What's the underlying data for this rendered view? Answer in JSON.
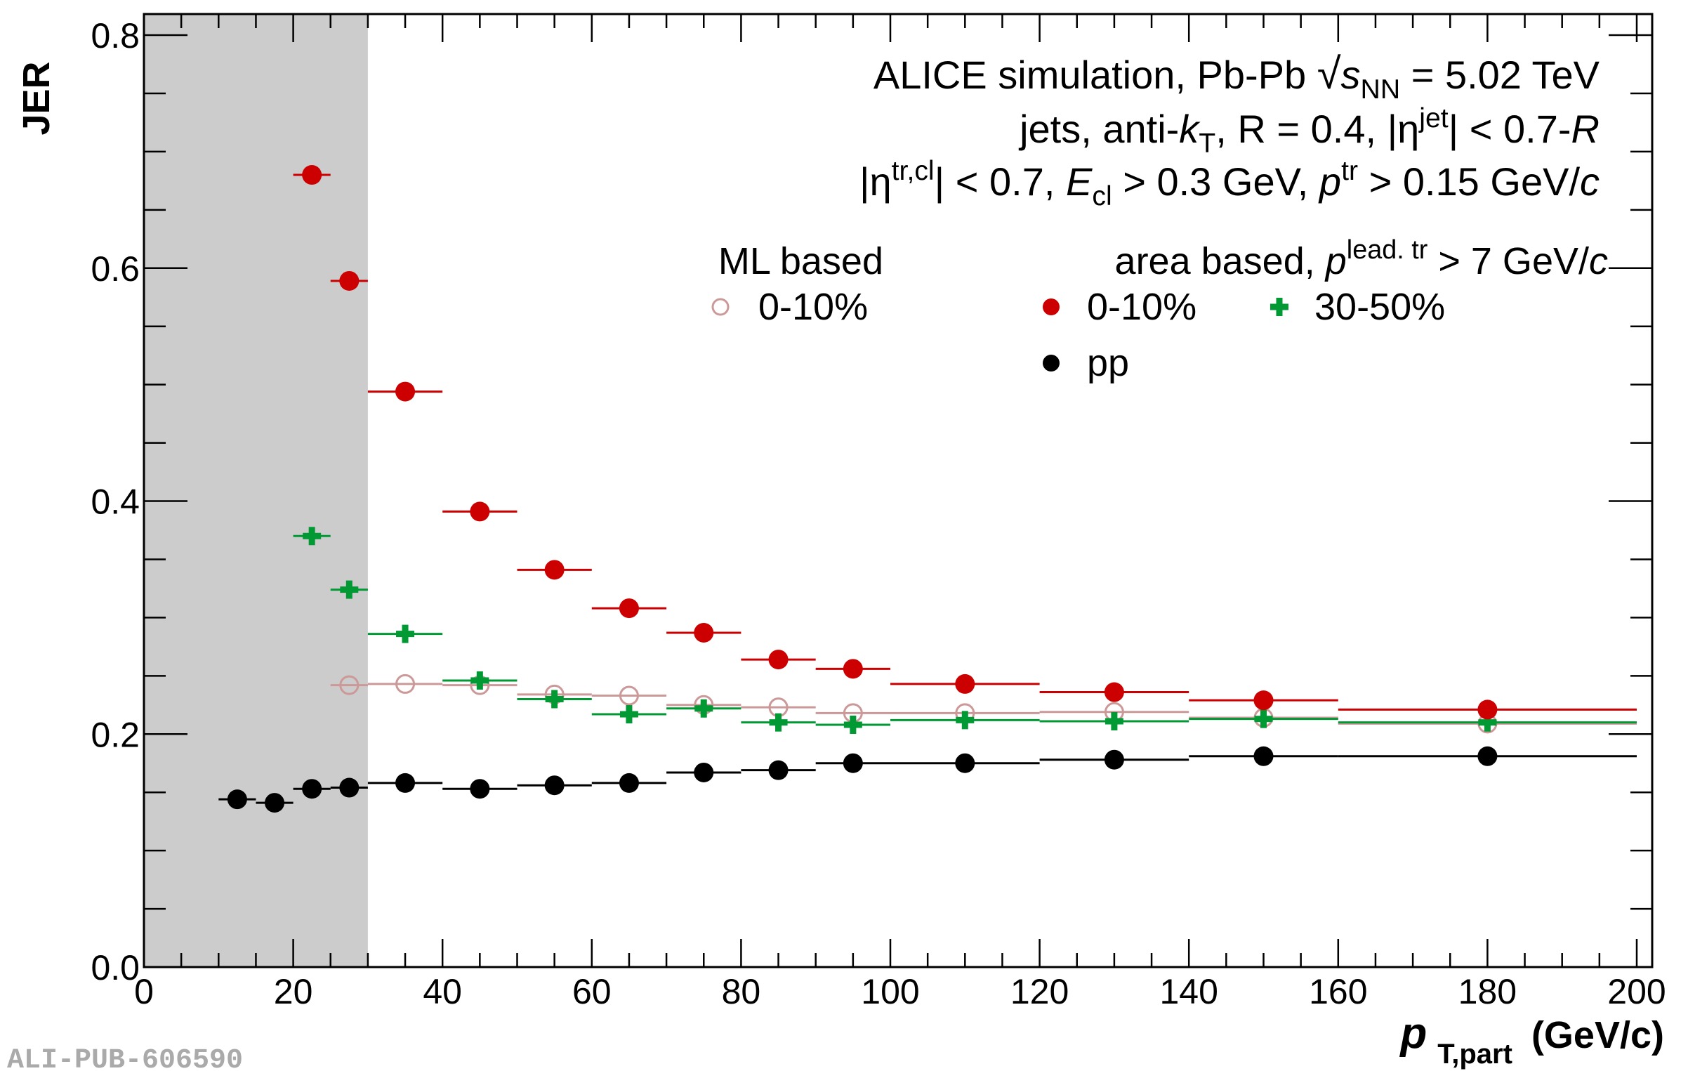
{
  "chart_data": {
    "type": "scatter",
    "title": "",
    "xlabel": {
      "main": "p",
      "sub": "T,part",
      "unit": "(GeV/c)"
    },
    "ylabel": "JER",
    "xlim": [
      0,
      200
    ],
    "ylim": [
      0,
      0.8
    ],
    "x_ticks": [
      0,
      20,
      40,
      60,
      80,
      100,
      120,
      140,
      160,
      180,
      200
    ],
    "x_tick_labels": [
      "0",
      "20",
      "40",
      "60",
      "80",
      "100",
      "120",
      "140",
      "160",
      "180",
      "200"
    ],
    "x_minor_step": 5,
    "y_ticks": [
      0.0,
      0.2,
      0.4,
      0.6,
      0.8
    ],
    "y_tick_labels": [
      "0.0",
      "0.2",
      "0.4",
      "0.6",
      "0.8"
    ],
    "y_minor_step": 0.05,
    "grid": false,
    "shaded_region": {
      "x_from": 0,
      "x_to": 30,
      "color": "#cccccc"
    },
    "annotations": [
      {
        "id": "line1",
        "parts": [
          {
            "t": "ALICE simulation, Pb-Pb "
          },
          {
            "t": "√",
            "style": "sqrt"
          },
          {
            "t": "s",
            "style": "italic"
          },
          {
            "t": "NN",
            "style": "sub"
          },
          {
            "t": " = 5.02 TeV"
          }
        ]
      },
      {
        "id": "line2",
        "parts": [
          {
            "t": "jets, anti-"
          },
          {
            "t": "k",
            "style": "italic"
          },
          {
            "t": "T",
            "style": "sub"
          },
          {
            "t": ", R = 0.4, |η"
          },
          {
            "t": "jet",
            "style": "sup"
          },
          {
            "t": "| < 0.7-"
          },
          {
            "t": "R",
            "style": "italic"
          }
        ]
      },
      {
        "id": "line3",
        "parts": [
          {
            "t": "|η"
          },
          {
            "t": "tr,cl",
            "style": "sup"
          },
          {
            "t": "| < 0.7, "
          },
          {
            "t": "E",
            "style": "italic"
          },
          {
            "t": "cl",
            "style": "sub"
          },
          {
            "t": " > 0.3 GeV, "
          },
          {
            "t": "p",
            "style": "italic"
          },
          {
            "t": "tr",
            "style": "sup"
          },
          {
            "t": " > 0.15 GeV/"
          },
          {
            "t": "c",
            "style": "italic"
          }
        ]
      }
    ],
    "legend": {
      "placement": "top-right",
      "groups": [
        {
          "header": "ML based",
          "entries": [
            {
              "series": "ml_0_10",
              "label": "0-10%"
            }
          ]
        },
        {
          "header_parts": [
            {
              "t": "area based, "
            },
            {
              "t": "p",
              "style": "italic"
            },
            {
              "t": "lead. tr",
              "style": "sup"
            },
            {
              "t": " > 7 GeV/"
            },
            {
              "t": "c",
              "style": "italic"
            }
          ],
          "entries": [
            {
              "series": "area_0_10",
              "label": "0-10%"
            },
            {
              "series": "area_30_50",
              "label": "30-50%"
            },
            {
              "series": "pp",
              "label": "pp"
            }
          ]
        }
      ]
    },
    "series": [
      {
        "id": "area_0_10",
        "name": "area based 0-10%",
        "marker": "filled-circle",
        "color": "#cc0000",
        "x": [
          22.5,
          27.5,
          35,
          45,
          55,
          65,
          75,
          85,
          95,
          110,
          130,
          150,
          180
        ],
        "xerr_low": [
          2.5,
          2.5,
          5,
          5,
          5,
          5,
          5,
          5,
          5,
          10,
          10,
          10,
          20
        ],
        "xerr_high": [
          2.5,
          2.5,
          5,
          5,
          5,
          5,
          5,
          5,
          5,
          10,
          10,
          10,
          20
        ],
        "y": [
          0.68,
          0.589,
          0.494,
          0.391,
          0.341,
          0.308,
          0.287,
          0.264,
          0.256,
          0.243,
          0.236,
          0.229,
          0.221
        ]
      },
      {
        "id": "area_30_50",
        "name": "area based 30-50%",
        "marker": "plus",
        "color": "#009933",
        "x": [
          22.5,
          27.5,
          35,
          45,
          55,
          65,
          75,
          85,
          95,
          110,
          130,
          150,
          180
        ],
        "xerr_low": [
          2.5,
          2.5,
          5,
          5,
          5,
          5,
          5,
          5,
          5,
          10,
          10,
          10,
          20
        ],
        "xerr_high": [
          2.5,
          2.5,
          5,
          5,
          5,
          5,
          5,
          5,
          5,
          10,
          10,
          10,
          20
        ],
        "y": [
          0.37,
          0.324,
          0.286,
          0.246,
          0.23,
          0.217,
          0.222,
          0.21,
          0.208,
          0.212,
          0.211,
          0.213,
          0.21
        ]
      },
      {
        "id": "ml_0_10",
        "name": "ML based 0-10%",
        "marker": "open-circle",
        "color": "#cc9999",
        "x": [
          27.5,
          35,
          45,
          55,
          65,
          75,
          85,
          95,
          110,
          130,
          150,
          180
        ],
        "xerr_low": [
          2.5,
          5,
          5,
          5,
          5,
          5,
          5,
          5,
          10,
          10,
          10,
          20
        ],
        "xerr_high": [
          2.5,
          5,
          5,
          5,
          5,
          5,
          5,
          5,
          10,
          10,
          10,
          20
        ],
        "y": [
          0.242,
          0.243,
          0.242,
          0.234,
          0.233,
          0.225,
          0.223,
          0.218,
          0.218,
          0.219,
          0.214,
          0.209
        ]
      },
      {
        "id": "pp",
        "name": "pp",
        "marker": "filled-circle",
        "color": "#000000",
        "x": [
          12.5,
          17.5,
          22.5,
          27.5,
          35,
          45,
          55,
          65,
          75,
          85,
          95,
          110,
          130,
          150,
          180
        ],
        "xerr_low": [
          2.5,
          2.5,
          2.5,
          2.5,
          5,
          5,
          5,
          5,
          5,
          5,
          5,
          10,
          10,
          10,
          20
        ],
        "xerr_high": [
          2.5,
          2.5,
          2.5,
          2.5,
          5,
          5,
          5,
          5,
          5,
          5,
          5,
          10,
          10,
          10,
          20
        ],
        "y": [
          0.144,
          0.141,
          0.153,
          0.154,
          0.158,
          0.153,
          0.156,
          0.158,
          0.167,
          0.169,
          0.175,
          0.175,
          0.178,
          0.181,
          0.181
        ]
      }
    ],
    "watermark": "ALI-PUB-606590"
  }
}
